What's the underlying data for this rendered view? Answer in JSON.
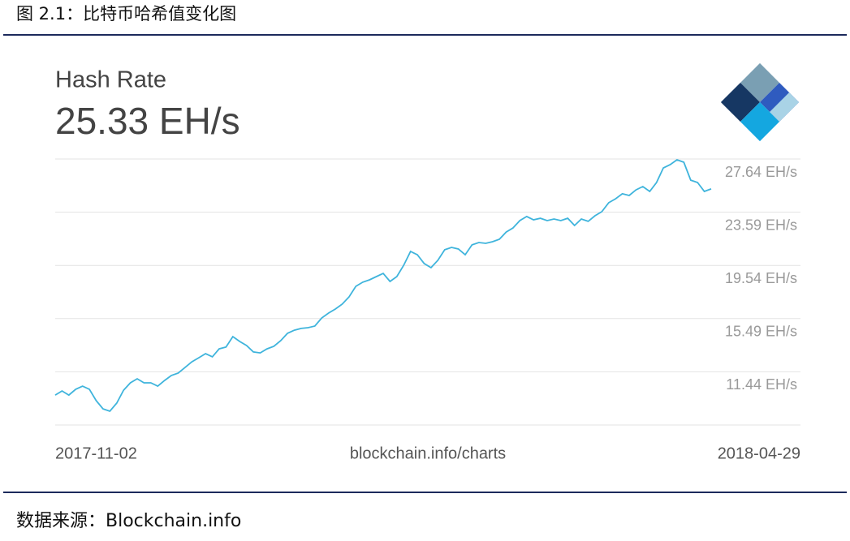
{
  "header": {
    "title": "图 2.1：比特币哈希值变化图"
  },
  "footer": {
    "source": "数据来源：Blockchain.info"
  },
  "chart_data": {
    "type": "line",
    "title": "Hash Rate",
    "subtitle": "25.33 EH/s",
    "source_label": "blockchain.info/charts",
    "color": "#3fb4dc",
    "grid": true,
    "ylim": [
      7.39,
      27.64
    ],
    "yticks": [
      {
        "value": 27.64,
        "label": "27.64 EH/s"
      },
      {
        "value": 23.59,
        "label": "23.59 EH/s"
      },
      {
        "value": 19.54,
        "label": "19.54 EH/s"
      },
      {
        "value": 15.49,
        "label": "15.49 EH/s"
      },
      {
        "value": 11.44,
        "label": "11.44 EH/s"
      }
    ],
    "categories": [
      "2017-11-02",
      null,
      null,
      null,
      null,
      null,
      null,
      null,
      null,
      null,
      null,
      null,
      null,
      null,
      null,
      null,
      null,
      null,
      null,
      null,
      null,
      null,
      null,
      null,
      null,
      null,
      null,
      null,
      null,
      null,
      null,
      null,
      null,
      null,
      null,
      null,
      null,
      null,
      null,
      null,
      null,
      null,
      null,
      null,
      null,
      null,
      null,
      null,
      null,
      null,
      null,
      null,
      null,
      null,
      null,
      null,
      null,
      null,
      null,
      null,
      null,
      null,
      null,
      null,
      null,
      null,
      null,
      null,
      null,
      null,
      null,
      null,
      null,
      null,
      null,
      null,
      null,
      null,
      null,
      null,
      null,
      null,
      null,
      null,
      null,
      null,
      null,
      null,
      null,
      null,
      null,
      null,
      null,
      null,
      null,
      null,
      "2018-04-29"
    ],
    "values": [
      9.67,
      9.98,
      9.67,
      10.11,
      10.35,
      10.11,
      9.24,
      8.62,
      8.44,
      9.06,
      10.04,
      10.6,
      10.91,
      10.6,
      10.6,
      10.35,
      10.78,
      11.16,
      11.34,
      11.77,
      12.2,
      12.51,
      12.82,
      12.58,
      13.19,
      13.32,
      14.12,
      13.75,
      13.44,
      12.95,
      12.88,
      13.19,
      13.38,
      13.81,
      14.37,
      14.61,
      14.74,
      14.8,
      14.92,
      15.54,
      15.91,
      16.22,
      16.59,
      17.14,
      17.95,
      18.26,
      18.44,
      18.69,
      18.93,
      18.32,
      18.69,
      19.55,
      20.6,
      20.35,
      19.68,
      19.37,
      19.92,
      20.73,
      20.91,
      20.79,
      20.35,
      21.1,
      21.28,
      21.22,
      21.34,
      21.53,
      22.08,
      22.39,
      22.95,
      23.26,
      23.01,
      23.13,
      22.95,
      23.07,
      22.95,
      23.13,
      22.58,
      23.07,
      22.89,
      23.32,
      23.63,
      24.31,
      24.61,
      24.99,
      24.86,
      25.29,
      25.54,
      25.17,
      25.85,
      26.96,
      27.21,
      27.58,
      27.39,
      26.03,
      25.85,
      25.17,
      25.36
    ]
  }
}
